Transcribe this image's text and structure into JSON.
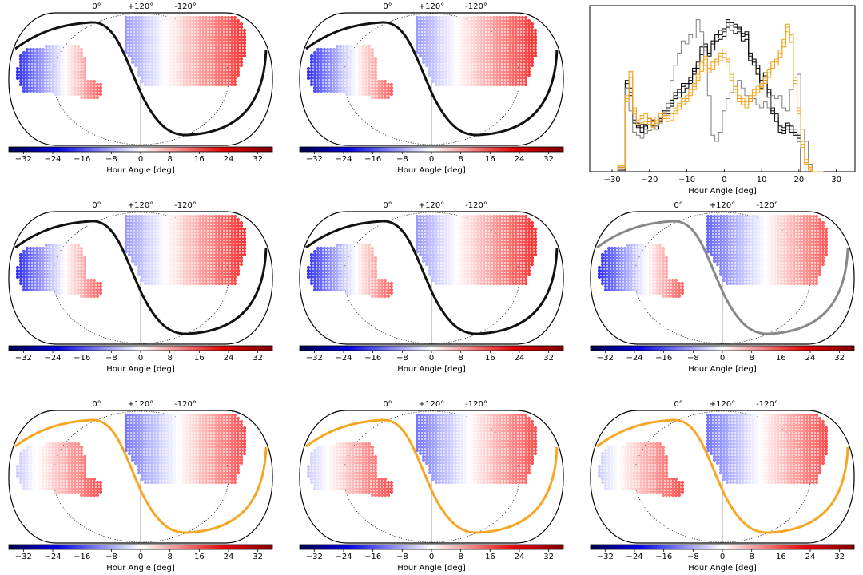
{
  "colors": {
    "cold": "#0000c8",
    "neutral": "#ffffff",
    "hot": "#e00000",
    "black_curve": "#111111",
    "gray_curve": "#888888",
    "orange_curve": "#f5a623",
    "outline": "#000000"
  },
  "chart_data": [
    {
      "type": "map",
      "panel": "r1c1",
      "curve_color": "black",
      "top_labels": [
        "0°",
        "+120°",
        "-120°"
      ],
      "colorbar": {
        "label": "Hour Angle [deg]",
        "ticks": [
          "−32",
          "−24",
          "−16",
          "−8",
          "0",
          "8",
          "16",
          "24",
          "32"
        ],
        "range": [
          -36,
          36
        ]
      },
      "field_hour_angle": {
        "southern": [
          -30,
          24
        ],
        "northern": [
          -15,
          30
        ]
      }
    },
    {
      "type": "map",
      "panel": "r1c2",
      "curve_color": "black",
      "top_labels": [
        "0°",
        "+120°",
        "-120°"
      ],
      "colorbar": {
        "label": "Hour Angle [deg]",
        "ticks": [
          "−32",
          "−24",
          "−16",
          "−8",
          "0",
          "8",
          "16",
          "24",
          "32"
        ],
        "range": [
          -36,
          36
        ]
      },
      "field_hour_angle": {
        "southern": [
          -30,
          24
        ],
        "northern": [
          -15,
          30
        ]
      }
    },
    {
      "type": "histogram",
      "panel": "r1c3",
      "xlabel": "Hour Angle [deg]",
      "xticks": [
        "−30",
        "−20",
        "−10",
        "0",
        "10",
        "20",
        "30"
      ],
      "xlim": [
        -36,
        35
      ],
      "series": [
        {
          "color": "black",
          "x": [
            -28,
            -27,
            -26,
            -25,
            -24,
            -23,
            -22,
            -21,
            -20,
            -19,
            -18,
            -17,
            -16,
            -15,
            -14,
            -13,
            -12,
            -11,
            -10,
            -9,
            -8,
            -7,
            -6,
            -5,
            -4,
            -3,
            -2,
            -1,
            0,
            1,
            2,
            3,
            4,
            5,
            6,
            7,
            8,
            9,
            10,
            11,
            12,
            13,
            14,
            15,
            16,
            17,
            18,
            19,
            20,
            21,
            22,
            23,
            24,
            25,
            26
          ],
          "y": [
            2,
            2,
            58,
            55,
            34,
            32,
            29,
            31,
            33,
            34,
            30,
            35,
            38,
            40,
            45,
            50,
            52,
            56,
            57,
            60,
            66,
            70,
            80,
            82,
            78,
            84,
            88,
            90,
            92,
            98,
            96,
            95,
            94,
            89,
            90,
            76,
            72,
            68,
            58,
            63,
            52,
            40,
            36,
            28,
            27,
            30,
            28,
            26,
            22,
            0,
            0,
            0,
            0,
            0,
            0
          ]
        },
        {
          "color": "black",
          "x": [
            -28,
            -27,
            -26,
            -25,
            -24,
            -23,
            -22,
            -21,
            -20,
            -19,
            -18,
            -17,
            -16,
            -15,
            -14,
            -13,
            -12,
            -11,
            -10,
            -9,
            -8,
            -7,
            -6,
            -5,
            -4,
            -3,
            -2,
            -1,
            0,
            1,
            2,
            3,
            4,
            5,
            6,
            7,
            8,
            9,
            10,
            11,
            12,
            13,
            14,
            15,
            16,
            17,
            18,
            19,
            20,
            21,
            22,
            23,
            24,
            25,
            26
          ],
          "y": [
            3,
            3,
            55,
            50,
            32,
            29,
            26,
            30,
            31,
            33,
            28,
            33,
            36,
            38,
            43,
            48,
            49,
            52,
            55,
            58,
            64,
            68,
            77,
            80,
            76,
            80,
            86,
            87,
            89,
            95,
            93,
            91,
            92,
            86,
            87,
            73,
            70,
            64,
            55,
            60,
            49,
            38,
            33,
            26,
            25,
            28,
            26,
            24,
            20,
            0,
            0,
            0,
            0,
            0,
            0
          ]
        },
        {
          "color": "black",
          "x": [
            -28,
            -27,
            -26,
            -25,
            -24,
            -23,
            -22,
            -21,
            -20,
            -19,
            -18,
            -17,
            -16,
            -15,
            -14,
            -13,
            -12,
            -11,
            -10,
            -9,
            -8,
            -7,
            -6,
            -5,
            -4,
            -3,
            -2,
            -1,
            0,
            1,
            2,
            3,
            4,
            5,
            6,
            7,
            8,
            9,
            10,
            11,
            12,
            13,
            14,
            15,
            16,
            17,
            18,
            19,
            20,
            21,
            22,
            23,
            24,
            25,
            26
          ],
          "y": [
            1,
            1,
            60,
            52,
            36,
            30,
            31,
            28,
            35,
            30,
            32,
            34,
            40,
            42,
            47,
            52,
            54,
            58,
            58,
            62,
            68,
            72,
            82,
            84,
            80,
            86,
            90,
            93,
            94,
            100,
            98,
            97,
            95,
            91,
            92,
            78,
            74,
            70,
            60,
            65,
            54,
            42,
            38,
            30,
            29,
            32,
            30,
            28,
            24,
            0,
            0,
            0,
            0,
            0,
            0
          ]
        },
        {
          "color": "gray",
          "x": [
            -28,
            -27,
            -26,
            -25,
            -24,
            -23,
            -22,
            -21,
            -20,
            -19,
            -18,
            -17,
            -16,
            -15,
            -14,
            -13,
            -12,
            -11,
            -10,
            -9,
            -8,
            -7,
            -6,
            -5,
            -4,
            -3,
            -2,
            -1,
            0,
            1,
            2,
            3,
            4,
            5,
            6,
            7,
            8,
            9,
            10,
            11,
            12,
            13,
            14,
            15,
            16,
            17,
            18,
            19,
            20,
            21,
            22,
            23,
            24,
            25,
            26
          ],
          "y": [
            2,
            2,
            55,
            40,
            26,
            24,
            22,
            25,
            27,
            28,
            30,
            32,
            38,
            45,
            60,
            70,
            78,
            86,
            84,
            90,
            88,
            100,
            92,
            70,
            50,
            24,
            20,
            26,
            40,
            48,
            52,
            56,
            60,
            55,
            50,
            46,
            48,
            44,
            42,
            46,
            42,
            50,
            48,
            50,
            42,
            40,
            54,
            60,
            64,
            28,
            20,
            5,
            0,
            0,
            0
          ]
        },
        {
          "color": "orange",
          "x": [
            -28,
            -27,
            -26,
            -25,
            -24,
            -23,
            -22,
            -21,
            -20,
            -19,
            -18,
            -17,
            -16,
            -15,
            -14,
            -13,
            -12,
            -11,
            -10,
            -9,
            -8,
            -7,
            -6,
            -5,
            -4,
            -3,
            -2,
            -1,
            0,
            1,
            2,
            3,
            4,
            5,
            6,
            7,
            8,
            9,
            10,
            11,
            12,
            13,
            14,
            15,
            16,
            17,
            18,
            19,
            20,
            21,
            22,
            23,
            24,
            25,
            26
          ],
          "y": [
            4,
            4,
            48,
            65,
            40,
            34,
            35,
            36,
            33,
            31,
            34,
            36,
            37,
            35,
            36,
            40,
            43,
            46,
            48,
            52,
            56,
            62,
            70,
            74,
            68,
            70,
            72,
            76,
            78,
            72,
            62,
            54,
            48,
            46,
            44,
            48,
            52,
            54,
            56,
            60,
            65,
            70,
            72,
            78,
            85,
            95,
            88,
            60,
            40,
            18,
            6,
            2,
            0,
            0,
            0
          ]
        },
        {
          "color": "orange",
          "x": [
            -28,
            -27,
            -26,
            -25,
            -24,
            -23,
            -22,
            -21,
            -20,
            -19,
            -18,
            -17,
            -16,
            -15,
            -14,
            -13,
            -12,
            -11,
            -10,
            -9,
            -8,
            -7,
            -6,
            -5,
            -4,
            -3,
            -2,
            -1,
            0,
            1,
            2,
            3,
            4,
            5,
            6,
            7,
            8,
            9,
            10,
            11,
            12,
            13,
            14,
            15,
            16,
            17,
            18,
            19,
            20,
            21,
            22,
            23,
            24,
            25,
            26
          ],
          "y": [
            2,
            2,
            46,
            62,
            38,
            31,
            32,
            33,
            31,
            29,
            32,
            34,
            35,
            33,
            34,
            38,
            41,
            44,
            46,
            50,
            54,
            60,
            66,
            70,
            65,
            67,
            70,
            73,
            75,
            70,
            60,
            52,
            46,
            44,
            42,
            46,
            50,
            52,
            54,
            58,
            62,
            68,
            70,
            75,
            82,
            92,
            85,
            58,
            38,
            16,
            5,
            1,
            0,
            0,
            0
          ]
        },
        {
          "color": "orange",
          "x": [
            -28,
            -27,
            -26,
            -25,
            -24,
            -23,
            -22,
            -21,
            -20,
            -19,
            -18,
            -17,
            -16,
            -15,
            -14,
            -13,
            -12,
            -11,
            -10,
            -9,
            -8,
            -7,
            -6,
            -5,
            -4,
            -3,
            -2,
            -1,
            0,
            1,
            2,
            3,
            4,
            5,
            6,
            7,
            8,
            9,
            10,
            11,
            12,
            13,
            14,
            15,
            16,
            17,
            18,
            19,
            20,
            21,
            22,
            23,
            24,
            25,
            26
          ],
          "y": [
            3,
            3,
            50,
            66,
            42,
            36,
            37,
            38,
            35,
            33,
            36,
            38,
            39,
            37,
            38,
            42,
            45,
            48,
            50,
            54,
            58,
            64,
            72,
            76,
            70,
            72,
            74,
            78,
            80,
            74,
            64,
            56,
            50,
            48,
            46,
            50,
            54,
            56,
            58,
            62,
            67,
            72,
            74,
            80,
            87,
            97,
            90,
            62,
            42,
            20,
            8,
            3,
            0,
            0,
            0
          ]
        }
      ]
    },
    {
      "type": "map",
      "panel": "r2c1",
      "curve_color": "black",
      "top_labels": [
        "0°",
        "+120°",
        "-120°"
      ],
      "colorbar": {
        "label": "Hour Angle [deg]",
        "ticks": [
          "−32",
          "−24",
          "−16",
          "−8",
          "0",
          "8",
          "16",
          "24",
          "32"
        ],
        "range": [
          -36,
          36
        ]
      },
      "field_hour_angle": {
        "southern": [
          -30,
          24
        ],
        "northern": [
          -15,
          30
        ]
      }
    },
    {
      "type": "map",
      "panel": "r2c2",
      "curve_color": "black",
      "top_labels": [
        "0°",
        "+120°",
        "-120°"
      ],
      "colorbar": {
        "label": "Hour Angle [deg]",
        "ticks": [
          "−32",
          "−24",
          "−16",
          "−8",
          "0",
          "8",
          "16",
          "24",
          "32"
        ],
        "range": [
          -36,
          36
        ]
      },
      "field_hour_angle": {
        "southern": [
          -30,
          24
        ],
        "northern": [
          -15,
          30
        ]
      }
    },
    {
      "type": "map",
      "panel": "r2c3",
      "curve_color": "gray",
      "top_labels": [
        "0°",
        "+120°",
        "-120°"
      ],
      "colorbar": {
        "label": "Hour Angle [deg]",
        "ticks": [
          "−32",
          "−24",
          "−16",
          "−8",
          "0",
          "8",
          "16",
          "24",
          "32"
        ],
        "range": [
          -36,
          36
        ]
      },
      "field_hour_angle": {
        "southern": [
          -30,
          24
        ],
        "northern": [
          -22,
          24
        ]
      }
    },
    {
      "type": "map",
      "panel": "r3c1",
      "curve_color": "orange",
      "top_labels": [
        "0°",
        "+120°",
        "-120°"
      ],
      "colorbar": {
        "label": "Hour Angle [deg]",
        "ticks": [
          "−32",
          "−24",
          "−16",
          "−8",
          "0",
          "8",
          "16",
          "24",
          "32"
        ],
        "range": [
          -36,
          36
        ]
      },
      "field_hour_angle": {
        "southern": [
          -8,
          26
        ],
        "northern": [
          -20,
          26
        ]
      }
    },
    {
      "type": "map",
      "panel": "r3c2",
      "curve_color": "orange",
      "top_labels": [
        "0°",
        "+120°",
        "-120°"
      ],
      "colorbar": {
        "label": "Hour Angle [deg]",
        "ticks": [
          "−32",
          "−24",
          "−16",
          "−8",
          "0",
          "8",
          "16",
          "24",
          "32"
        ],
        "range": [
          -36,
          36
        ]
      },
      "field_hour_angle": {
        "southern": [
          -8,
          26
        ],
        "northern": [
          -20,
          26
        ]
      }
    },
    {
      "type": "map",
      "panel": "r3c3",
      "curve_color": "orange",
      "top_labels": [
        "0°",
        "+120°",
        "-120°"
      ],
      "colorbar": {
        "label": "Hour Angle [deg]",
        "ticks": [
          "−32",
          "−24",
          "−16",
          "−8",
          "0",
          "8",
          "16",
          "24",
          "32"
        ],
        "range": [
          -36,
          36
        ]
      },
      "field_hour_angle": {
        "southern": [
          -8,
          26
        ],
        "northern": [
          -20,
          26
        ]
      }
    }
  ]
}
